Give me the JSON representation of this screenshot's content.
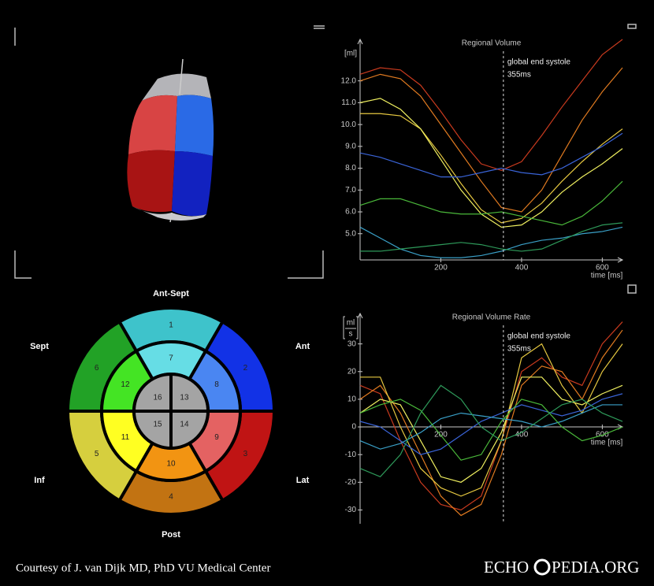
{
  "bullseye": {
    "walls": {
      "ant_sept": "Ant-Sept",
      "sept": "Sept",
      "ant": "Ant",
      "inf": "Inf",
      "lat": "Lat",
      "post": "Post"
    },
    "segments": [
      {
        "label": "1",
        "color": "#3ec3cb"
      },
      {
        "label": "2",
        "color": "#1232e6"
      },
      {
        "label": "3",
        "color": "#c01414"
      },
      {
        "label": "4",
        "color": "#c27312"
      },
      {
        "label": "5",
        "color": "#d6cf3e"
      },
      {
        "label": "6",
        "color": "#22a226"
      },
      {
        "label": "7",
        "color": "#66dde5"
      },
      {
        "label": "8",
        "color": "#4a86f2"
      },
      {
        "label": "9",
        "color": "#e46262"
      },
      {
        "label": "10",
        "color": "#f29412"
      },
      {
        "label": "11",
        "color": "#ffff22"
      },
      {
        "label": "12",
        "color": "#44e424"
      },
      {
        "label": "13",
        "color": "#a4a4a4"
      },
      {
        "label": "14",
        "color": "#a4a4a4"
      },
      {
        "label": "15",
        "color": "#a4a4a4"
      },
      {
        "label": "16",
        "color": "#a4a4a4"
      }
    ]
  },
  "chart_data": [
    {
      "type": "line",
      "title": "Regional Volume",
      "y_label": "[ml]",
      "x_label": "time [ms]",
      "x": [
        0,
        50,
        100,
        150,
        200,
        250,
        300,
        350,
        400,
        450,
        500,
        550,
        600,
        650
      ],
      "xlim": [
        0,
        650
      ],
      "xticks": [
        200,
        400,
        600
      ],
      "ylim": [
        3.8,
        13.9
      ],
      "yticks": [
        {
          "value": 5,
          "label": "5.0"
        },
        {
          "value": 6,
          "label": "6.0"
        },
        {
          "value": 7,
          "label": "7.0"
        },
        {
          "value": 8,
          "label": "8.0"
        },
        {
          "value": 9,
          "label": "9.0"
        },
        {
          "value": 10,
          "label": "10.0"
        },
        {
          "value": 11,
          "label": "11.0"
        },
        {
          "value": 12,
          "label": "12.0"
        }
      ],
      "annotation": {
        "text": "global end systole",
        "label": "355ms",
        "value": 355
      },
      "series": [
        {
          "color": "#c83a1e",
          "values": [
            12.3,
            12.6,
            12.5,
            11.8,
            10.6,
            9.3,
            8.2,
            7.9,
            8.3,
            9.5,
            10.8,
            12.0,
            13.2,
            13.9
          ]
        },
        {
          "color": "#e07a20",
          "values": [
            12.0,
            12.3,
            12.1,
            11.3,
            10.0,
            8.7,
            7.4,
            6.2,
            6.0,
            7.0,
            8.6,
            10.2,
            11.5,
            12.6
          ]
        },
        {
          "color": "#e6c840",
          "values": [
            10.5,
            10.5,
            10.4,
            9.8,
            8.6,
            7.3,
            6.1,
            5.5,
            5.7,
            6.4,
            7.4,
            8.3,
            9.1,
            9.8
          ]
        },
        {
          "color": "#f0f060",
          "values": [
            11.0,
            11.2,
            10.7,
            9.8,
            8.4,
            7.0,
            5.9,
            5.3,
            5.4,
            6.0,
            6.9,
            7.6,
            8.2,
            8.9
          ]
        },
        {
          "color": "#3a64d8",
          "values": [
            8.7,
            8.5,
            8.2,
            7.9,
            7.6,
            7.6,
            7.8,
            8.0,
            7.8,
            7.7,
            8.0,
            8.5,
            9.0,
            9.6
          ]
        },
        {
          "color": "#3aa0c8",
          "values": [
            5.3,
            4.8,
            4.3,
            4.0,
            3.9,
            3.9,
            4.0,
            4.2,
            4.5,
            4.7,
            4.8,
            5.0,
            5.1,
            5.3
          ]
        },
        {
          "color": "#4ab83a",
          "values": [
            6.3,
            6.6,
            6.6,
            6.3,
            6.0,
            5.9,
            5.9,
            6.0,
            5.8,
            5.6,
            5.4,
            5.8,
            6.5,
            7.4
          ]
        },
        {
          "color": "#2e9a5a",
          "values": [
            4.2,
            4.2,
            4.3,
            4.4,
            4.5,
            4.6,
            4.5,
            4.3,
            4.2,
            4.3,
            4.7,
            5.1,
            5.4,
            5.5
          ]
        }
      ]
    },
    {
      "type": "line",
      "title": "Regional Volume Rate",
      "y_label": {
        "numerator": "ml",
        "denominator": "s"
      },
      "x_label": "time [ms]",
      "x": [
        0,
        50,
        100,
        150,
        200,
        250,
        300,
        350,
        400,
        450,
        500,
        550,
        600,
        650
      ],
      "xlim": [
        0,
        650
      ],
      "xticks": [
        200,
        400,
        600
      ],
      "ylim": [
        -35,
        41
      ],
      "yticks": [
        -30,
        -20,
        -10,
        0,
        10,
        20,
        30
      ],
      "annotation": {
        "text": "global end systole",
        "label": "355ms",
        "value": 355
      },
      "series": [
        {
          "color": "#c83a1e",
          "values": [
            15,
            12,
            -5,
            -20,
            -28,
            -30,
            -25,
            -5,
            20,
            25,
            18,
            15,
            30,
            38
          ]
        },
        {
          "color": "#e07a20",
          "values": [
            10,
            15,
            5,
            -10,
            -25,
            -32,
            -28,
            -10,
            15,
            22,
            20,
            10,
            25,
            35
          ]
        },
        {
          "color": "#e6c840",
          "values": [
            18,
            18,
            0,
            -15,
            -22,
            -25,
            -22,
            -5,
            25,
            30,
            15,
            5,
            20,
            30
          ]
        },
        {
          "color": "#f0f060",
          "values": [
            5,
            10,
            8,
            -5,
            -18,
            -20,
            -15,
            -2,
            18,
            18,
            10,
            8,
            12,
            15
          ]
        },
        {
          "color": "#3a64d8",
          "values": [
            2,
            0,
            -5,
            -10,
            -8,
            -3,
            2,
            5,
            8,
            6,
            4,
            6,
            10,
            12
          ]
        },
        {
          "color": "#3aa0c8",
          "values": [
            -5,
            -8,
            -6,
            -2,
            3,
            5,
            4,
            3,
            2,
            0,
            2,
            5,
            8,
            8
          ]
        },
        {
          "color": "#4ab83a",
          "values": [
            5,
            8,
            10,
            6,
            -3,
            -12,
            -10,
            2,
            10,
            8,
            0,
            -5,
            -3,
            0
          ]
        },
        {
          "color": "#2e9a5a",
          "values": [
            -15,
            -18,
            -10,
            5,
            15,
            10,
            0,
            -5,
            -2,
            3,
            8,
            10,
            5,
            2
          ]
        }
      ]
    }
  ],
  "footer": {
    "credit": "Courtesy of J. van Dijk MD, PhD VU Medical Center",
    "logo_left": "ECHO",
    "logo_right": "PEDIA.ORG"
  }
}
